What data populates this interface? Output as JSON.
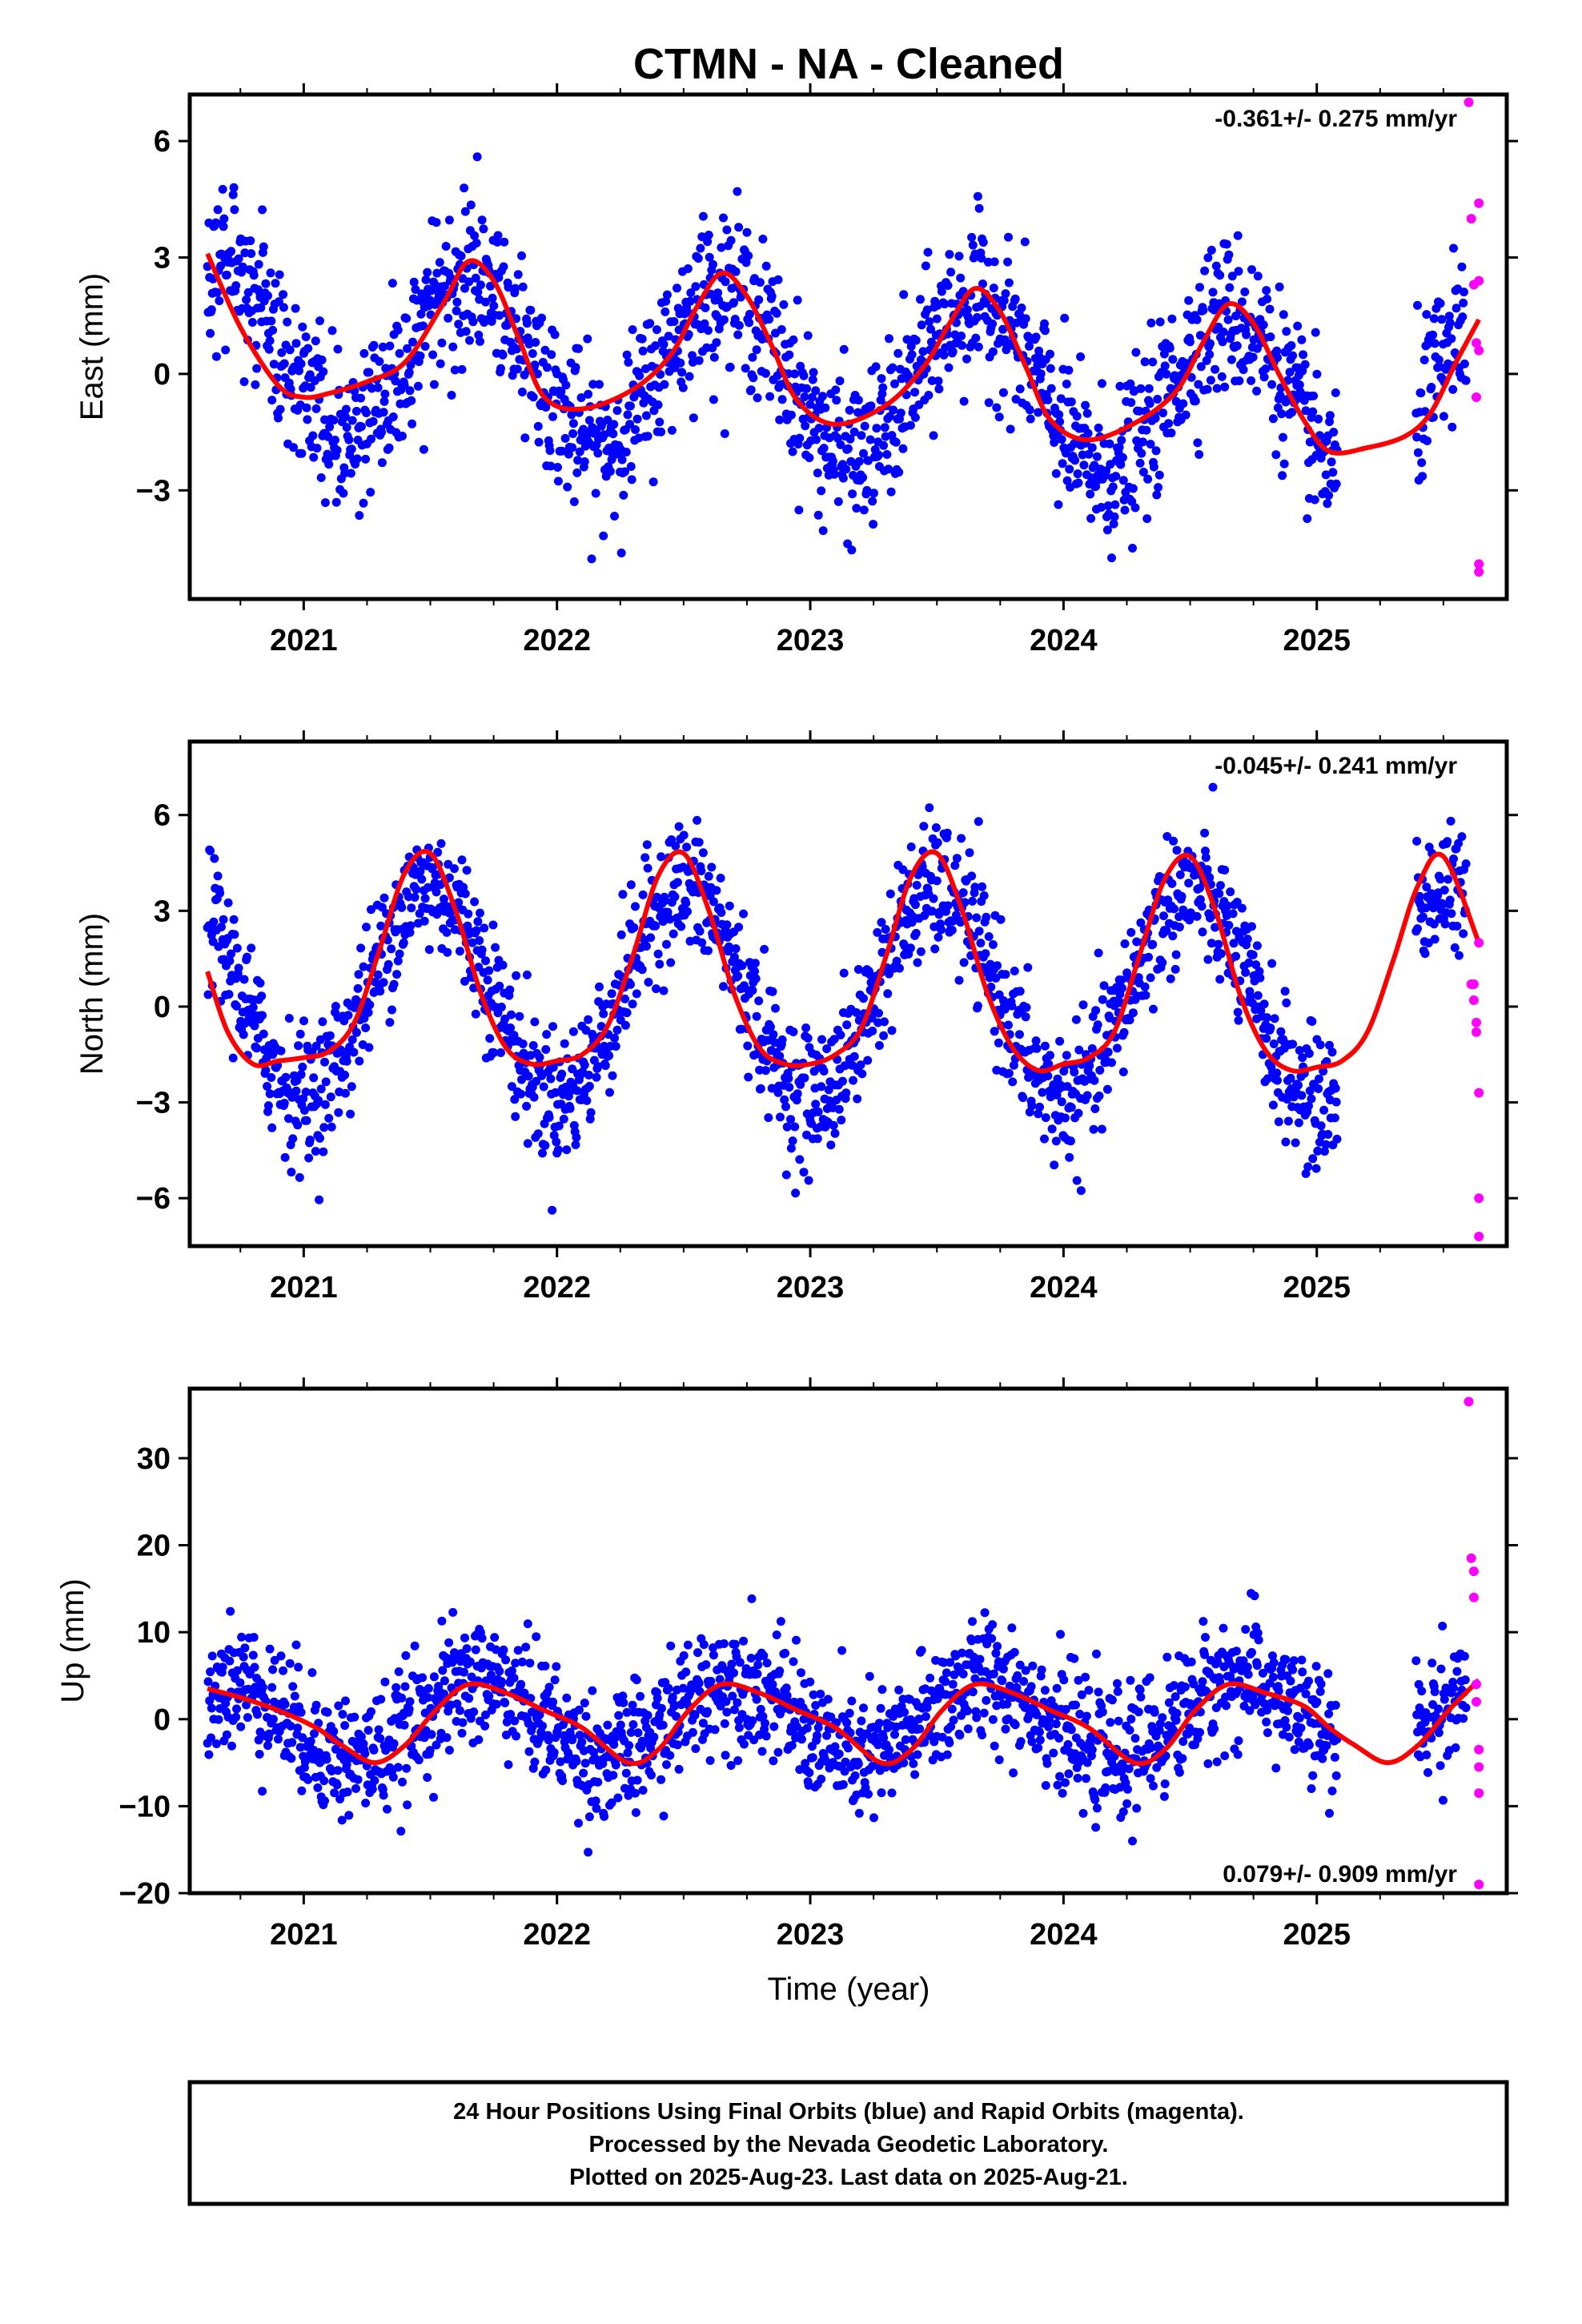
{
  "chart_data": {
    "type": "scatter",
    "title": "CTMN  - NA - Cleaned",
    "xlabel": "Time (year)",
    "xlim": [
      2020.55,
      2025.75
    ],
    "x_ticks": [
      2021,
      2022,
      2023,
      2024,
      2025
    ],
    "x_tick_labels": [
      "2021",
      "2022",
      "2023",
      "2024",
      "2025"
    ],
    "last_rapid_epoch": 2025.64,
    "legend": {
      "final_orbits": {
        "name": "Final Orbits",
        "color": "#0000ff"
      },
      "rapid_orbits": {
        "name": "Rapid Orbits",
        "color": "#ff00ff"
      },
      "model_fit": {
        "color": "#ff0000"
      }
    },
    "panels": [
      {
        "ylabel": "East (mm)",
        "ylim": [
          -5.8,
          7.2
        ],
        "y_ticks": [
          6,
          3,
          0,
          -3
        ],
        "y_tick_labels": [
          "6",
          "3",
          "0",
          "−3"
        ],
        "rate": "-0.361+/- 0.275 mm/yr",
        "rate_position": "top-right",
        "fit": {
          "x": [
            2020.62,
            2020.75,
            2020.9,
            2021.0,
            2021.1,
            2021.25,
            2021.4,
            2021.55,
            2021.65,
            2021.75,
            2021.85,
            2021.95,
            2022.1,
            2022.3,
            2022.45,
            2022.55,
            2022.65,
            2022.75,
            2022.85,
            2022.95,
            2023.1,
            2023.3,
            2023.45,
            2023.55,
            2023.65,
            2023.75,
            2023.85,
            2023.95,
            2024.1,
            2024.3,
            2024.45,
            2024.55,
            2024.65,
            2024.75,
            2024.85,
            2024.95,
            2025.05,
            2025.2,
            2025.35,
            2025.45,
            2025.55,
            2025.64
          ],
          "y": [
            3.1,
            1.2,
            -0.3,
            -0.6,
            -0.5,
            -0.2,
            0.3,
            1.8,
            2.9,
            2.4,
            0.9,
            -0.6,
            -0.9,
            -0.4,
            0.5,
            1.7,
            2.6,
            2.0,
            0.7,
            -0.7,
            -1.3,
            -0.8,
            0.2,
            1.3,
            2.2,
            1.6,
            0.2,
            -1.2,
            -1.7,
            -1.2,
            -0.4,
            0.8,
            1.8,
            1.3,
            0.0,
            -1.2,
            -2.0,
            -1.9,
            -1.6,
            -1.0,
            0.3,
            1.4
          ]
        },
        "seasonal": {
          "amp": 2.1,
          "phase": 0.66,
          "offset": 0.0,
          "trend": -0.36,
          "noise": 1.0
        },
        "rapid": {
          "x": [
            2025.6,
            2025.61,
            2025.62,
            2025.63,
            2025.63,
            2025.64,
            2025.64,
            2025.64,
            2025.64,
            2025.64
          ],
          "y": [
            7.0,
            4.0,
            2.3,
            0.8,
            -0.6,
            -4.9,
            -5.1,
            4.4,
            2.4,
            0.6
          ]
        }
      },
      {
        "ylabel": "North (mm)",
        "ylim": [
          -7.5,
          8.3
        ],
        "y_ticks": [
          6,
          3,
          0,
          -3,
          -6
        ],
        "y_tick_labels": [
          "6",
          "3",
          "0",
          "−3",
          "−6"
        ],
        "rate": "-0.045+/- 0.241 mm/yr",
        "rate_position": "top-right",
        "fit": {
          "x": [
            2020.62,
            2020.7,
            2020.8,
            2020.9,
            2021.0,
            2021.1,
            2021.2,
            2021.3,
            2021.4,
            2021.5,
            2021.6,
            2021.7,
            2021.8,
            2021.9,
            2022.0,
            2022.1,
            2022.2,
            2022.3,
            2022.4,
            2022.5,
            2022.6,
            2022.7,
            2022.8,
            2022.9,
            2023.0,
            2023.1,
            2023.2,
            2023.3,
            2023.4,
            2023.5,
            2023.6,
            2023.7,
            2023.8,
            2023.9,
            2024.0,
            2024.1,
            2024.2,
            2024.3,
            2024.4,
            2024.5,
            2024.6,
            2024.7,
            2024.8,
            2024.9,
            2025.0,
            2025.1,
            2025.2,
            2025.3,
            2025.4,
            2025.5,
            2025.64
          ],
          "y": [
            1.1,
            -0.8,
            -1.8,
            -1.7,
            -1.6,
            -1.4,
            -0.5,
            1.8,
            4.2,
            4.8,
            3.0,
            0.4,
            -1.3,
            -1.8,
            -1.7,
            -1.5,
            -0.6,
            1.6,
            4.1,
            4.8,
            3.0,
            0.4,
            -1.3,
            -1.8,
            -1.8,
            -1.5,
            -0.7,
            1.6,
            4.1,
            4.8,
            3.0,
            0.4,
            -1.3,
            -2.0,
            -1.8,
            -1.6,
            -0.8,
            1.6,
            4.0,
            4.7,
            3.0,
            0.3,
            -1.4,
            -2.0,
            -1.9,
            -1.7,
            -0.8,
            1.4,
            3.8,
            4.7,
            2.0
          ]
        },
        "seasonal": {
          "amp": 3.3,
          "phase": 0.5,
          "offset": 0.4,
          "trend": -0.05,
          "noise": 1.05
        },
        "rapid": {
          "x": [
            2025.61,
            2025.62,
            2025.62,
            2025.63,
            2025.63,
            2025.64,
            2025.64,
            2025.64,
            2025.64
          ],
          "y": [
            0.7,
            0.7,
            0.2,
            -0.5,
            -0.8,
            -2.7,
            -6.0,
            -7.2,
            2.0
          ]
        }
      },
      {
        "ylabel": "Up (mm)",
        "ylim": [
          -20,
          38
        ],
        "y_ticks": [
          30,
          20,
          10,
          0,
          -10,
          -20
        ],
        "y_tick_labels": [
          "30",
          "20",
          "10",
          "0",
          "−10",
          "−20"
        ],
        "rate": "0.079+/- 0.909 mm/yr",
        "rate_position": "bottom-right",
        "fit": {
          "x": [
            2020.62,
            2020.75,
            2020.9,
            2021.05,
            2021.15,
            2021.28,
            2021.4,
            2021.52,
            2021.65,
            2021.8,
            2021.95,
            2022.1,
            2022.28,
            2022.4,
            2022.52,
            2022.65,
            2022.8,
            2022.95,
            2023.1,
            2023.28,
            2023.4,
            2023.52,
            2023.65,
            2023.8,
            2023.95,
            2024.1,
            2024.28,
            2024.4,
            2024.52,
            2024.65,
            2024.8,
            2024.95,
            2025.05,
            2025.15,
            2025.28,
            2025.4,
            2025.52,
            2025.64
          ],
          "y": [
            3.5,
            2.5,
            1.0,
            -1.0,
            -3.0,
            -5.0,
            -3.0,
            1.0,
            4.0,
            3.0,
            1.0,
            -1.0,
            -5.0,
            -3.5,
            1.0,
            4.0,
            3.0,
            1.0,
            -1.0,
            -5.0,
            -3.5,
            1.0,
            4.0,
            3.0,
            1.0,
            -1.0,
            -5.0,
            -3.5,
            1.0,
            4.0,
            3.0,
            1.5,
            -1.0,
            -3.0,
            -5.0,
            -3.0,
            1.0,
            4.5
          ]
        },
        "seasonal": {
          "amp": 4.5,
          "phase": 0.7,
          "offset": 0.0,
          "trend": 0.08,
          "noise": 3.6
        },
        "rapid": {
          "x": [
            2025.6,
            2025.61,
            2025.62,
            2025.62,
            2025.63,
            2025.63,
            2025.64,
            2025.64,
            2025.64,
            2025.64
          ],
          "y": [
            36.5,
            18.5,
            17.0,
            14.0,
            4.0,
            2.0,
            -3.5,
            -5.5,
            -8.5,
            -19.0
          ]
        }
      }
    ]
  },
  "caption": {
    "lines": [
      "24 Hour Positions Using Final Orbits (blue) and Rapid Orbits (magenta).",
      "Processed by the Nevada Geodetic Laboratory.",
      "Plotted on 2025-Aug-23. Last data on 2025-Aug-21."
    ]
  }
}
